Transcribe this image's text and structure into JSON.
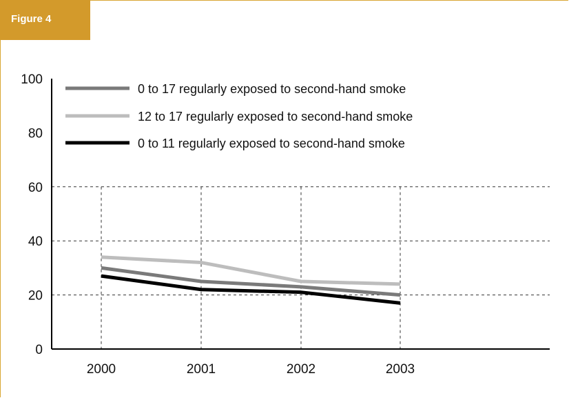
{
  "figure_label": "Figure 4",
  "colors": {
    "accent": "#d39a2b",
    "border": "#d9a633",
    "grid": "#333333"
  },
  "chart_data": {
    "type": "line",
    "title": "",
    "xlabel": "",
    "ylabel": "",
    "categories": [
      "2000",
      "2001",
      "2002",
      "2003"
    ],
    "ylim": [
      0,
      100
    ],
    "yticks": [
      "0",
      "20",
      "40",
      "60",
      "80",
      "100"
    ],
    "grid": "dashed, at 20/40/60 and at each category",
    "legend_position": "top-left",
    "series": [
      {
        "name": "0 to 17 regularly exposed to second-hand smoke",
        "color": "#7a7a7a",
        "values": [
          30,
          25,
          23,
          20
        ]
      },
      {
        "name": "12 to 17 regularly exposed to second-hand smoke",
        "color": "#bdbdbd",
        "values": [
          34,
          32,
          25,
          24
        ]
      },
      {
        "name": "0 to 11 regularly exposed to second-hand smoke",
        "color": "#000000",
        "values": [
          27,
          22,
          21,
          17
        ]
      }
    ]
  }
}
